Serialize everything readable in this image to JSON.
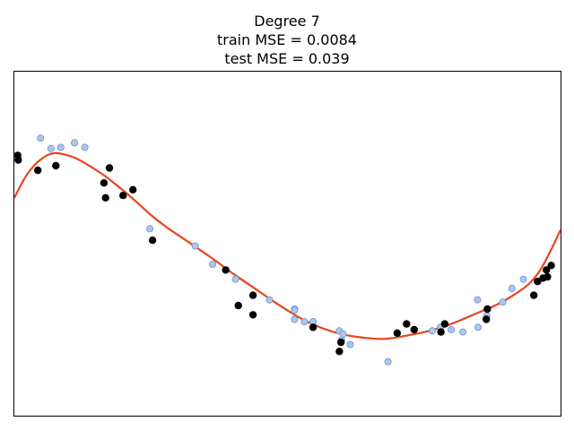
{
  "chart_data": {
    "type": "scatter",
    "title_lines": [
      "Degree 7",
      "train MSE = 0.0084",
      "test MSE = 0.039"
    ],
    "xlabel": "",
    "ylabel": "",
    "grid": false,
    "xlim": [
      0,
      1
    ],
    "ylim": [
      -1.5,
      1.5
    ],
    "series": [
      {
        "kind": "test-points",
        "color": "#aec7e8",
        "edge": "#6b8fd6",
        "points": [
          [
            0.048,
            0.92
          ],
          [
            0.067,
            0.83
          ],
          [
            0.085,
            0.84
          ],
          [
            0.11,
            0.88
          ],
          [
            0.129,
            0.84
          ],
          [
            0.248,
            0.13
          ],
          [
            0.331,
            -0.02
          ],
          [
            0.363,
            -0.18
          ],
          [
            0.405,
            -0.31
          ],
          [
            0.467,
            -0.49
          ],
          [
            0.513,
            -0.57
          ],
          [
            0.513,
            -0.66
          ],
          [
            0.513,
            -0.58
          ],
          [
            0.531,
            -0.68
          ],
          [
            0.547,
            -0.68
          ],
          [
            0.595,
            -0.76
          ],
          [
            0.599,
            -0.84
          ],
          [
            0.602,
            -0.79
          ],
          [
            0.615,
            -0.88
          ],
          [
            0.684,
            -1.03
          ],
          [
            0.765,
            -0.76
          ],
          [
            0.78,
            -0.73
          ],
          [
            0.8,
            -0.75
          ],
          [
            0.821,
            -0.77
          ],
          [
            0.848,
            -0.49
          ],
          [
            0.849,
            -0.73
          ],
          [
            0.865,
            -0.63
          ],
          [
            0.894,
            -0.51
          ],
          [
            0.911,
            -0.39
          ],
          [
            0.932,
            -0.31
          ]
        ]
      },
      {
        "kind": "train-points",
        "color": "#000000",
        "points": [
          [
            0.006,
            0.77
          ],
          [
            0.007,
            0.73
          ],
          [
            0.043,
            0.64
          ],
          [
            0.076,
            0.68
          ],
          [
            0.164,
            0.53
          ],
          [
            0.167,
            0.4
          ],
          [
            0.174,
            0.66
          ],
          [
            0.199,
            0.42
          ],
          [
            0.217,
            0.47
          ],
          [
            0.253,
            0.03
          ],
          [
            0.387,
            -0.23
          ],
          [
            0.41,
            -0.54
          ],
          [
            0.437,
            -0.45
          ],
          [
            0.437,
            -0.62
          ],
          [
            0.547,
            -0.73
          ],
          [
            0.595,
            -0.94
          ],
          [
            0.598,
            -0.86
          ],
          [
            0.701,
            -0.78
          ],
          [
            0.718,
            -0.7
          ],
          [
            0.732,
            -0.75
          ],
          [
            0.781,
            -0.77
          ],
          [
            0.788,
            -0.7
          ],
          [
            0.864,
            -0.66
          ],
          [
            0.866,
            -0.57
          ],
          [
            0.951,
            -0.45
          ],
          [
            0.958,
            -0.33
          ],
          [
            0.968,
            -0.3
          ],
          [
            0.974,
            -0.23
          ],
          [
            0.976,
            -0.29
          ],
          [
            0.983,
            -0.19
          ]
        ]
      },
      {
        "kind": "fit-curve",
        "color": "#e8451c",
        "points": [
          [
            0.0,
            0.4
          ],
          [
            0.02,
            0.58
          ],
          [
            0.04,
            0.7
          ],
          [
            0.06,
            0.77
          ],
          [
            0.075,
            0.79
          ],
          [
            0.09,
            0.78
          ],
          [
            0.11,
            0.75
          ],
          [
            0.13,
            0.7
          ],
          [
            0.16,
            0.61
          ],
          [
            0.19,
            0.5
          ],
          [
            0.22,
            0.38
          ],
          [
            0.25,
            0.25
          ],
          [
            0.28,
            0.14
          ],
          [
            0.32,
            0.01
          ],
          [
            0.36,
            -0.12
          ],
          [
            0.4,
            -0.26
          ],
          [
            0.44,
            -0.39
          ],
          [
            0.48,
            -0.52
          ],
          [
            0.52,
            -0.64
          ],
          [
            0.56,
            -0.73
          ],
          [
            0.6,
            -0.79
          ],
          [
            0.64,
            -0.82
          ],
          [
            0.68,
            -0.83
          ],
          [
            0.72,
            -0.8
          ],
          [
            0.76,
            -0.76
          ],
          [
            0.8,
            -0.7
          ],
          [
            0.84,
            -0.62
          ],
          [
            0.88,
            -0.54
          ],
          [
            0.91,
            -0.46
          ],
          [
            0.94,
            -0.36
          ],
          [
            0.96,
            -0.25
          ],
          [
            0.98,
            -0.08
          ],
          [
            1.0,
            0.12
          ]
        ]
      }
    ]
  }
}
